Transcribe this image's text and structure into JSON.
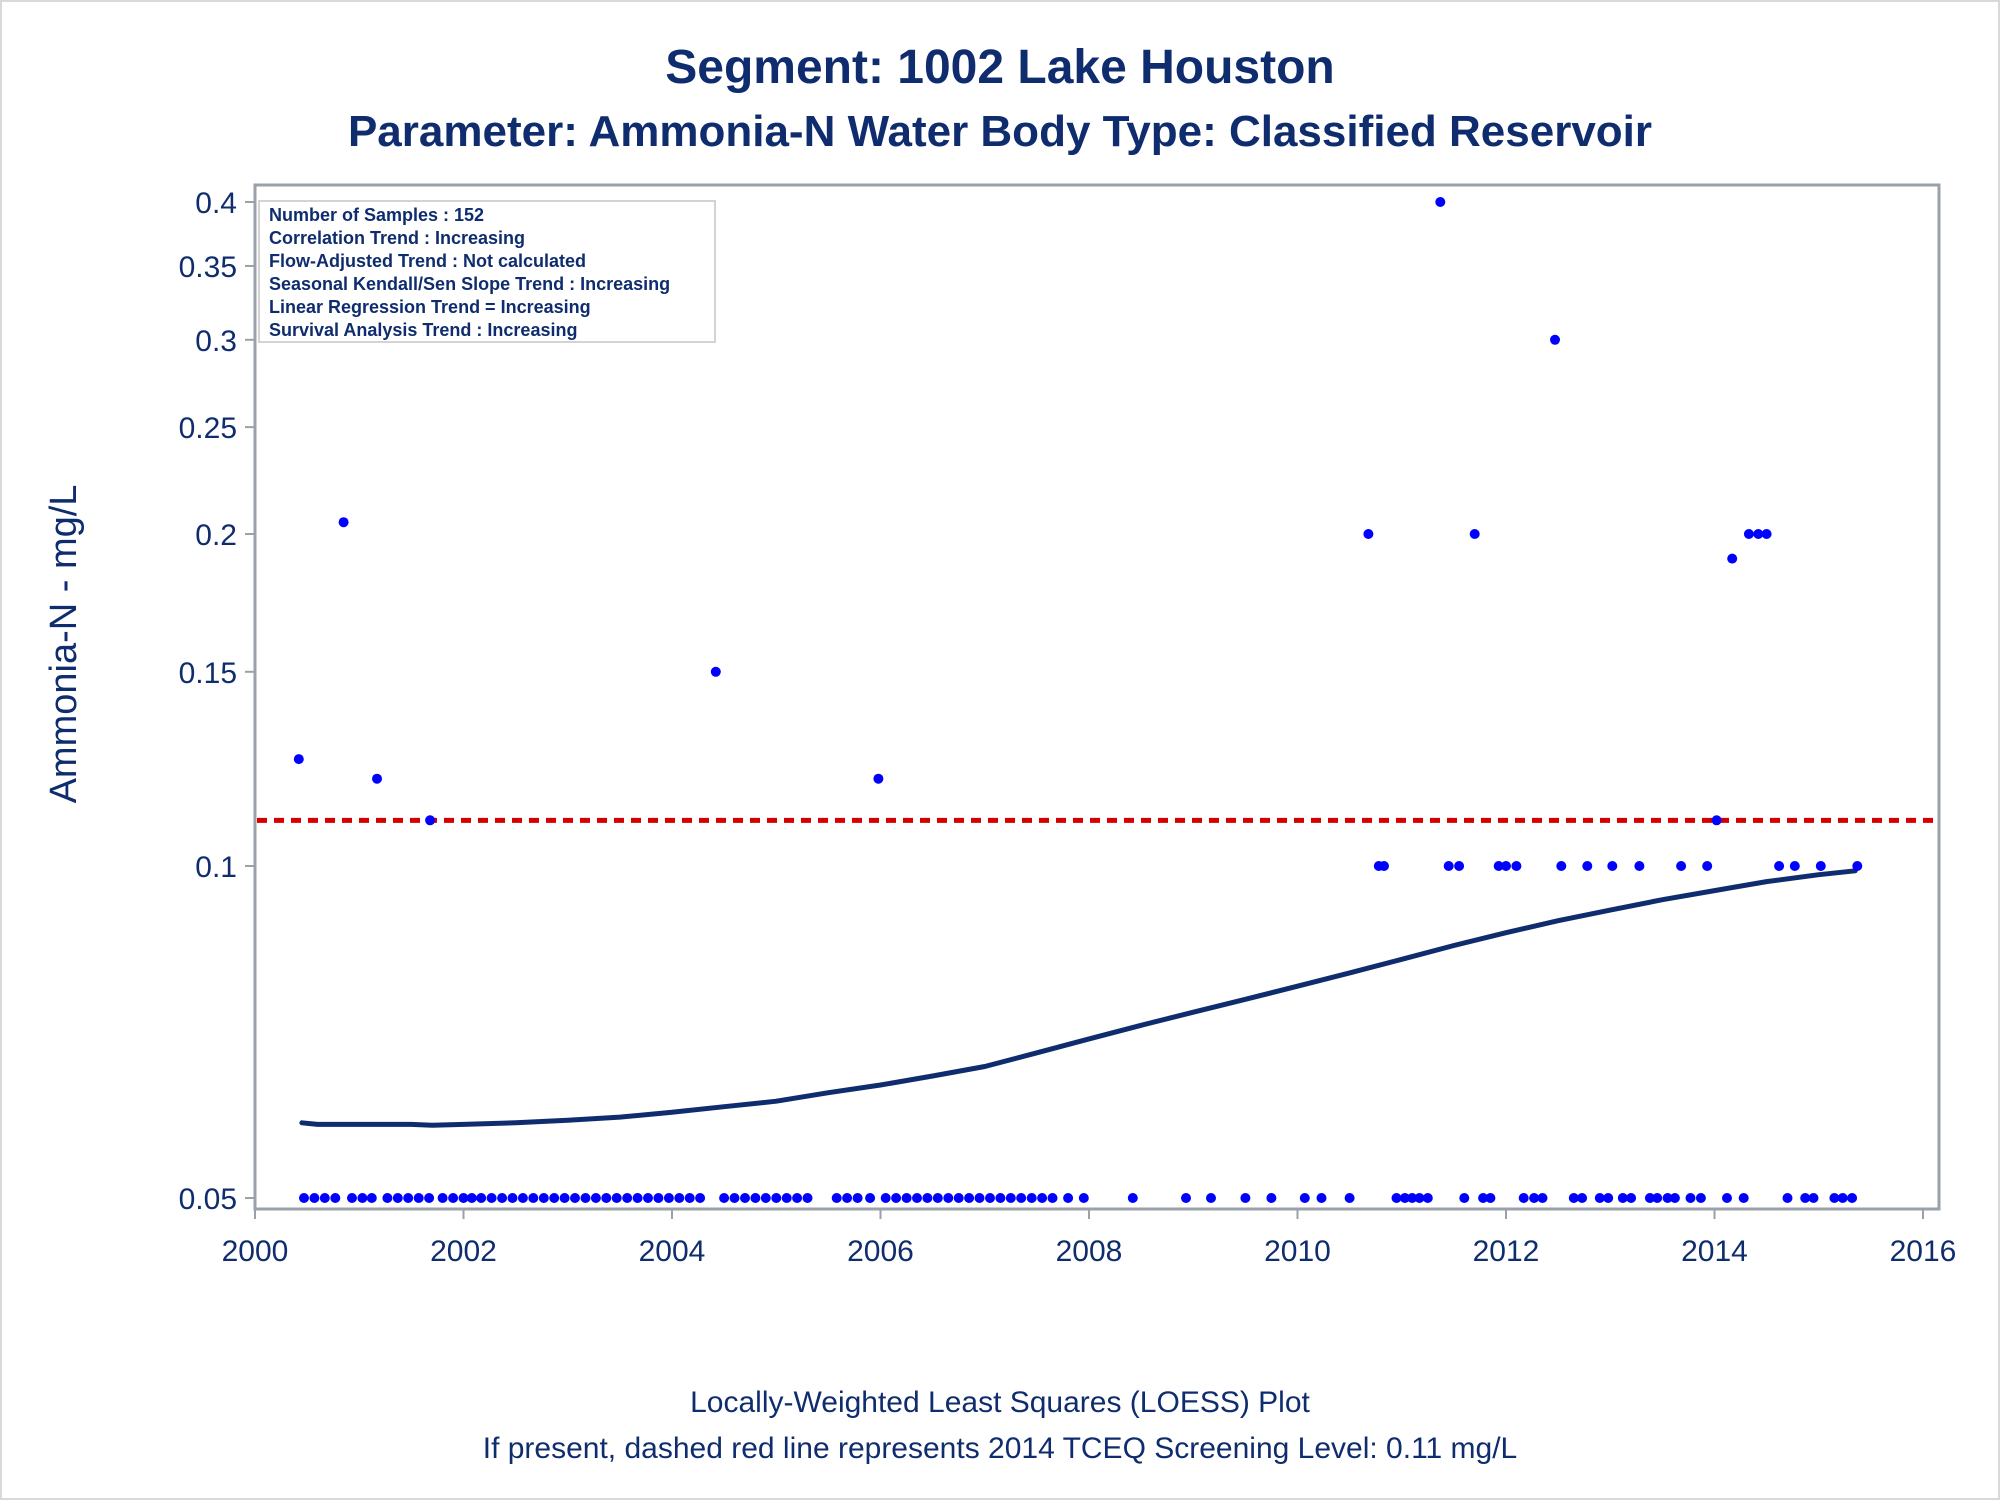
{
  "chart_data": {
    "type": "scatter",
    "title": "Segment: 1002  Lake Houston",
    "subtitle": "Parameter: Ammonia-N   Water Body Type: Classified Reservoir",
    "xlabel": "",
    "ylabel": "Ammonia-N - mg/L",
    "xlim": [
      2000,
      2016
    ],
    "ylim": [
      0.05,
      0.4
    ],
    "y_scale": "log",
    "x_ticks": [
      "2000",
      "2002",
      "2004",
      "2006",
      "2008",
      "2010",
      "2012",
      "2014",
      "2016"
    ],
    "y_ticks": [
      "0.05",
      "0.1",
      "0.15",
      "0.2",
      "0.25",
      "0.3",
      "0.35",
      "0.4"
    ],
    "grid": false,
    "inset_text": [
      "Number of Samples : 152",
      "Correlation Trend : Increasing",
      "Flow-Adjusted Trend : Not calculated",
      "Seasonal Kendall/Sen Slope Trend : Increasing",
      "Linear Regression Trend = Increasing",
      "Survival Analysis Trend : Increasing"
    ],
    "footnotes": [
      "Locally-Weighted Least Squares (LOESS) Plot",
      "If present, dashed red line represents 2014 TCEQ Screening Level: 0.11 mg/L"
    ],
    "screening_level": {
      "value": 0.11,
      "color": "#d40000",
      "style": "dashed"
    },
    "series": [
      {
        "kind": "scatter",
        "color": "#0000ff",
        "points": [
          [
            2000.42,
            0.125
          ],
          [
            2000.85,
            0.205
          ],
          [
            2001.17,
            0.12
          ],
          [
            2001.68,
            0.11
          ],
          [
            2004.42,
            0.15
          ],
          [
            2005.98,
            0.12
          ],
          [
            2010.68,
            0.2
          ],
          [
            2010.78,
            0.1
          ],
          [
            2010.83,
            0.1
          ],
          [
            2011.37,
            0.4
          ],
          [
            2011.45,
            0.1
          ],
          [
            2011.55,
            0.1
          ],
          [
            2011.7,
            0.2
          ],
          [
            2011.93,
            0.1
          ],
          [
            2012.0,
            0.1
          ],
          [
            2012.1,
            0.1
          ],
          [
            2012.47,
            0.3
          ],
          [
            2012.53,
            0.1
          ],
          [
            2012.78,
            0.1
          ],
          [
            2013.02,
            0.1
          ],
          [
            2013.28,
            0.1
          ],
          [
            2013.68,
            0.1
          ],
          [
            2013.93,
            0.1
          ],
          [
            2014.02,
            0.11
          ],
          [
            2014.17,
            0.19
          ],
          [
            2014.33,
            0.2
          ],
          [
            2014.42,
            0.2
          ],
          [
            2014.5,
            0.2
          ],
          [
            2014.62,
            0.1
          ],
          [
            2014.77,
            0.1
          ],
          [
            2015.02,
            0.1
          ],
          [
            2015.37,
            0.1
          ],
          [
            2000.47,
            0.05
          ],
          [
            2000.57,
            0.05
          ],
          [
            2000.67,
            0.05
          ],
          [
            2000.77,
            0.05
          ],
          [
            2000.93,
            0.05
          ],
          [
            2001.03,
            0.05
          ],
          [
            2001.12,
            0.05
          ],
          [
            2001.27,
            0.05
          ],
          [
            2001.37,
            0.05
          ],
          [
            2001.47,
            0.05
          ],
          [
            2001.57,
            0.05
          ],
          [
            2001.67,
            0.05
          ],
          [
            2001.8,
            0.05
          ],
          [
            2001.9,
            0.05
          ],
          [
            2002.0,
            0.05
          ],
          [
            2002.08,
            0.05
          ],
          [
            2002.17,
            0.05
          ],
          [
            2002.27,
            0.05
          ],
          [
            2002.37,
            0.05
          ],
          [
            2002.47,
            0.05
          ],
          [
            2002.57,
            0.05
          ],
          [
            2002.67,
            0.05
          ],
          [
            2002.77,
            0.05
          ],
          [
            2002.87,
            0.05
          ],
          [
            2002.97,
            0.05
          ],
          [
            2003.07,
            0.05
          ],
          [
            2003.17,
            0.05
          ],
          [
            2003.27,
            0.05
          ],
          [
            2003.37,
            0.05
          ],
          [
            2003.47,
            0.05
          ],
          [
            2003.57,
            0.05
          ],
          [
            2003.67,
            0.05
          ],
          [
            2003.77,
            0.05
          ],
          [
            2003.87,
            0.05
          ],
          [
            2003.97,
            0.05
          ],
          [
            2004.07,
            0.05
          ],
          [
            2004.17,
            0.05
          ],
          [
            2004.27,
            0.05
          ],
          [
            2004.5,
            0.05
          ],
          [
            2004.6,
            0.05
          ],
          [
            2004.7,
            0.05
          ],
          [
            2004.8,
            0.05
          ],
          [
            2004.9,
            0.05
          ],
          [
            2005.0,
            0.05
          ],
          [
            2005.1,
            0.05
          ],
          [
            2005.2,
            0.05
          ],
          [
            2005.3,
            0.05
          ],
          [
            2005.58,
            0.05
          ],
          [
            2005.68,
            0.05
          ],
          [
            2005.78,
            0.05
          ],
          [
            2005.9,
            0.05
          ],
          [
            2006.05,
            0.05
          ],
          [
            2006.15,
            0.05
          ],
          [
            2006.25,
            0.05
          ],
          [
            2006.35,
            0.05
          ],
          [
            2006.45,
            0.05
          ],
          [
            2006.55,
            0.05
          ],
          [
            2006.65,
            0.05
          ],
          [
            2006.75,
            0.05
          ],
          [
            2006.85,
            0.05
          ],
          [
            2006.95,
            0.05
          ],
          [
            2007.05,
            0.05
          ],
          [
            2007.15,
            0.05
          ],
          [
            2007.25,
            0.05
          ],
          [
            2007.35,
            0.05
          ],
          [
            2007.45,
            0.05
          ],
          [
            2007.55,
            0.05
          ],
          [
            2007.65,
            0.05
          ],
          [
            2007.8,
            0.05
          ],
          [
            2007.95,
            0.05
          ],
          [
            2008.42,
            0.05
          ],
          [
            2008.93,
            0.05
          ],
          [
            2009.17,
            0.05
          ],
          [
            2009.5,
            0.05
          ],
          [
            2009.75,
            0.05
          ],
          [
            2010.07,
            0.05
          ],
          [
            2010.23,
            0.05
          ],
          [
            2010.5,
            0.05
          ],
          [
            2010.95,
            0.05
          ],
          [
            2011.03,
            0.05
          ],
          [
            2011.1,
            0.05
          ],
          [
            2011.17,
            0.05
          ],
          [
            2011.25,
            0.05
          ],
          [
            2011.6,
            0.05
          ],
          [
            2011.78,
            0.05
          ],
          [
            2011.85,
            0.05
          ],
          [
            2012.17,
            0.05
          ],
          [
            2012.27,
            0.05
          ],
          [
            2012.35,
            0.05
          ],
          [
            2012.65,
            0.05
          ],
          [
            2012.73,
            0.05
          ],
          [
            2012.9,
            0.05
          ],
          [
            2012.98,
            0.05
          ],
          [
            2013.12,
            0.05
          ],
          [
            2013.2,
            0.05
          ],
          [
            2013.38,
            0.05
          ],
          [
            2013.45,
            0.05
          ],
          [
            2013.55,
            0.05
          ],
          [
            2013.62,
            0.05
          ],
          [
            2013.77,
            0.05
          ],
          [
            2013.87,
            0.05
          ],
          [
            2014.12,
            0.05
          ],
          [
            2014.28,
            0.05
          ],
          [
            2014.7,
            0.05
          ],
          [
            2014.87,
            0.05
          ],
          [
            2014.95,
            0.05
          ],
          [
            2015.15,
            0.05
          ],
          [
            2015.23,
            0.05
          ],
          [
            2015.32,
            0.05
          ]
        ]
      },
      {
        "kind": "line",
        "color": "#0f2d6e",
        "points": [
          [
            2000.45,
            0.0585
          ],
          [
            2000.6,
            0.0583
          ],
          [
            2001.0,
            0.0583
          ],
          [
            2001.5,
            0.0583
          ],
          [
            2001.7,
            0.0582
          ],
          [
            2002.0,
            0.0583
          ],
          [
            2002.5,
            0.0585
          ],
          [
            2003.0,
            0.0588
          ],
          [
            2003.5,
            0.0592
          ],
          [
            2004.0,
            0.0598
          ],
          [
            2004.5,
            0.0605
          ],
          [
            2005.0,
            0.0612
          ],
          [
            2005.5,
            0.0623
          ],
          [
            2006.0,
            0.0633
          ],
          [
            2006.5,
            0.0645
          ],
          [
            2007.0,
            0.0658
          ],
          [
            2007.5,
            0.0677
          ],
          [
            2008.0,
            0.0697
          ],
          [
            2008.5,
            0.0717
          ],
          [
            2009.0,
            0.0737
          ],
          [
            2009.5,
            0.0757
          ],
          [
            2010.0,
            0.0778
          ],
          [
            2010.5,
            0.08
          ],
          [
            2011.0,
            0.0823
          ],
          [
            2011.5,
            0.0847
          ],
          [
            2012.0,
            0.087
          ],
          [
            2012.5,
            0.0892
          ],
          [
            2013.0,
            0.0912
          ],
          [
            2013.5,
            0.0932
          ],
          [
            2014.0,
            0.095
          ],
          [
            2014.5,
            0.0968
          ],
          [
            2015.0,
            0.0982
          ],
          [
            2015.35,
            0.099
          ]
        ]
      }
    ]
  }
}
